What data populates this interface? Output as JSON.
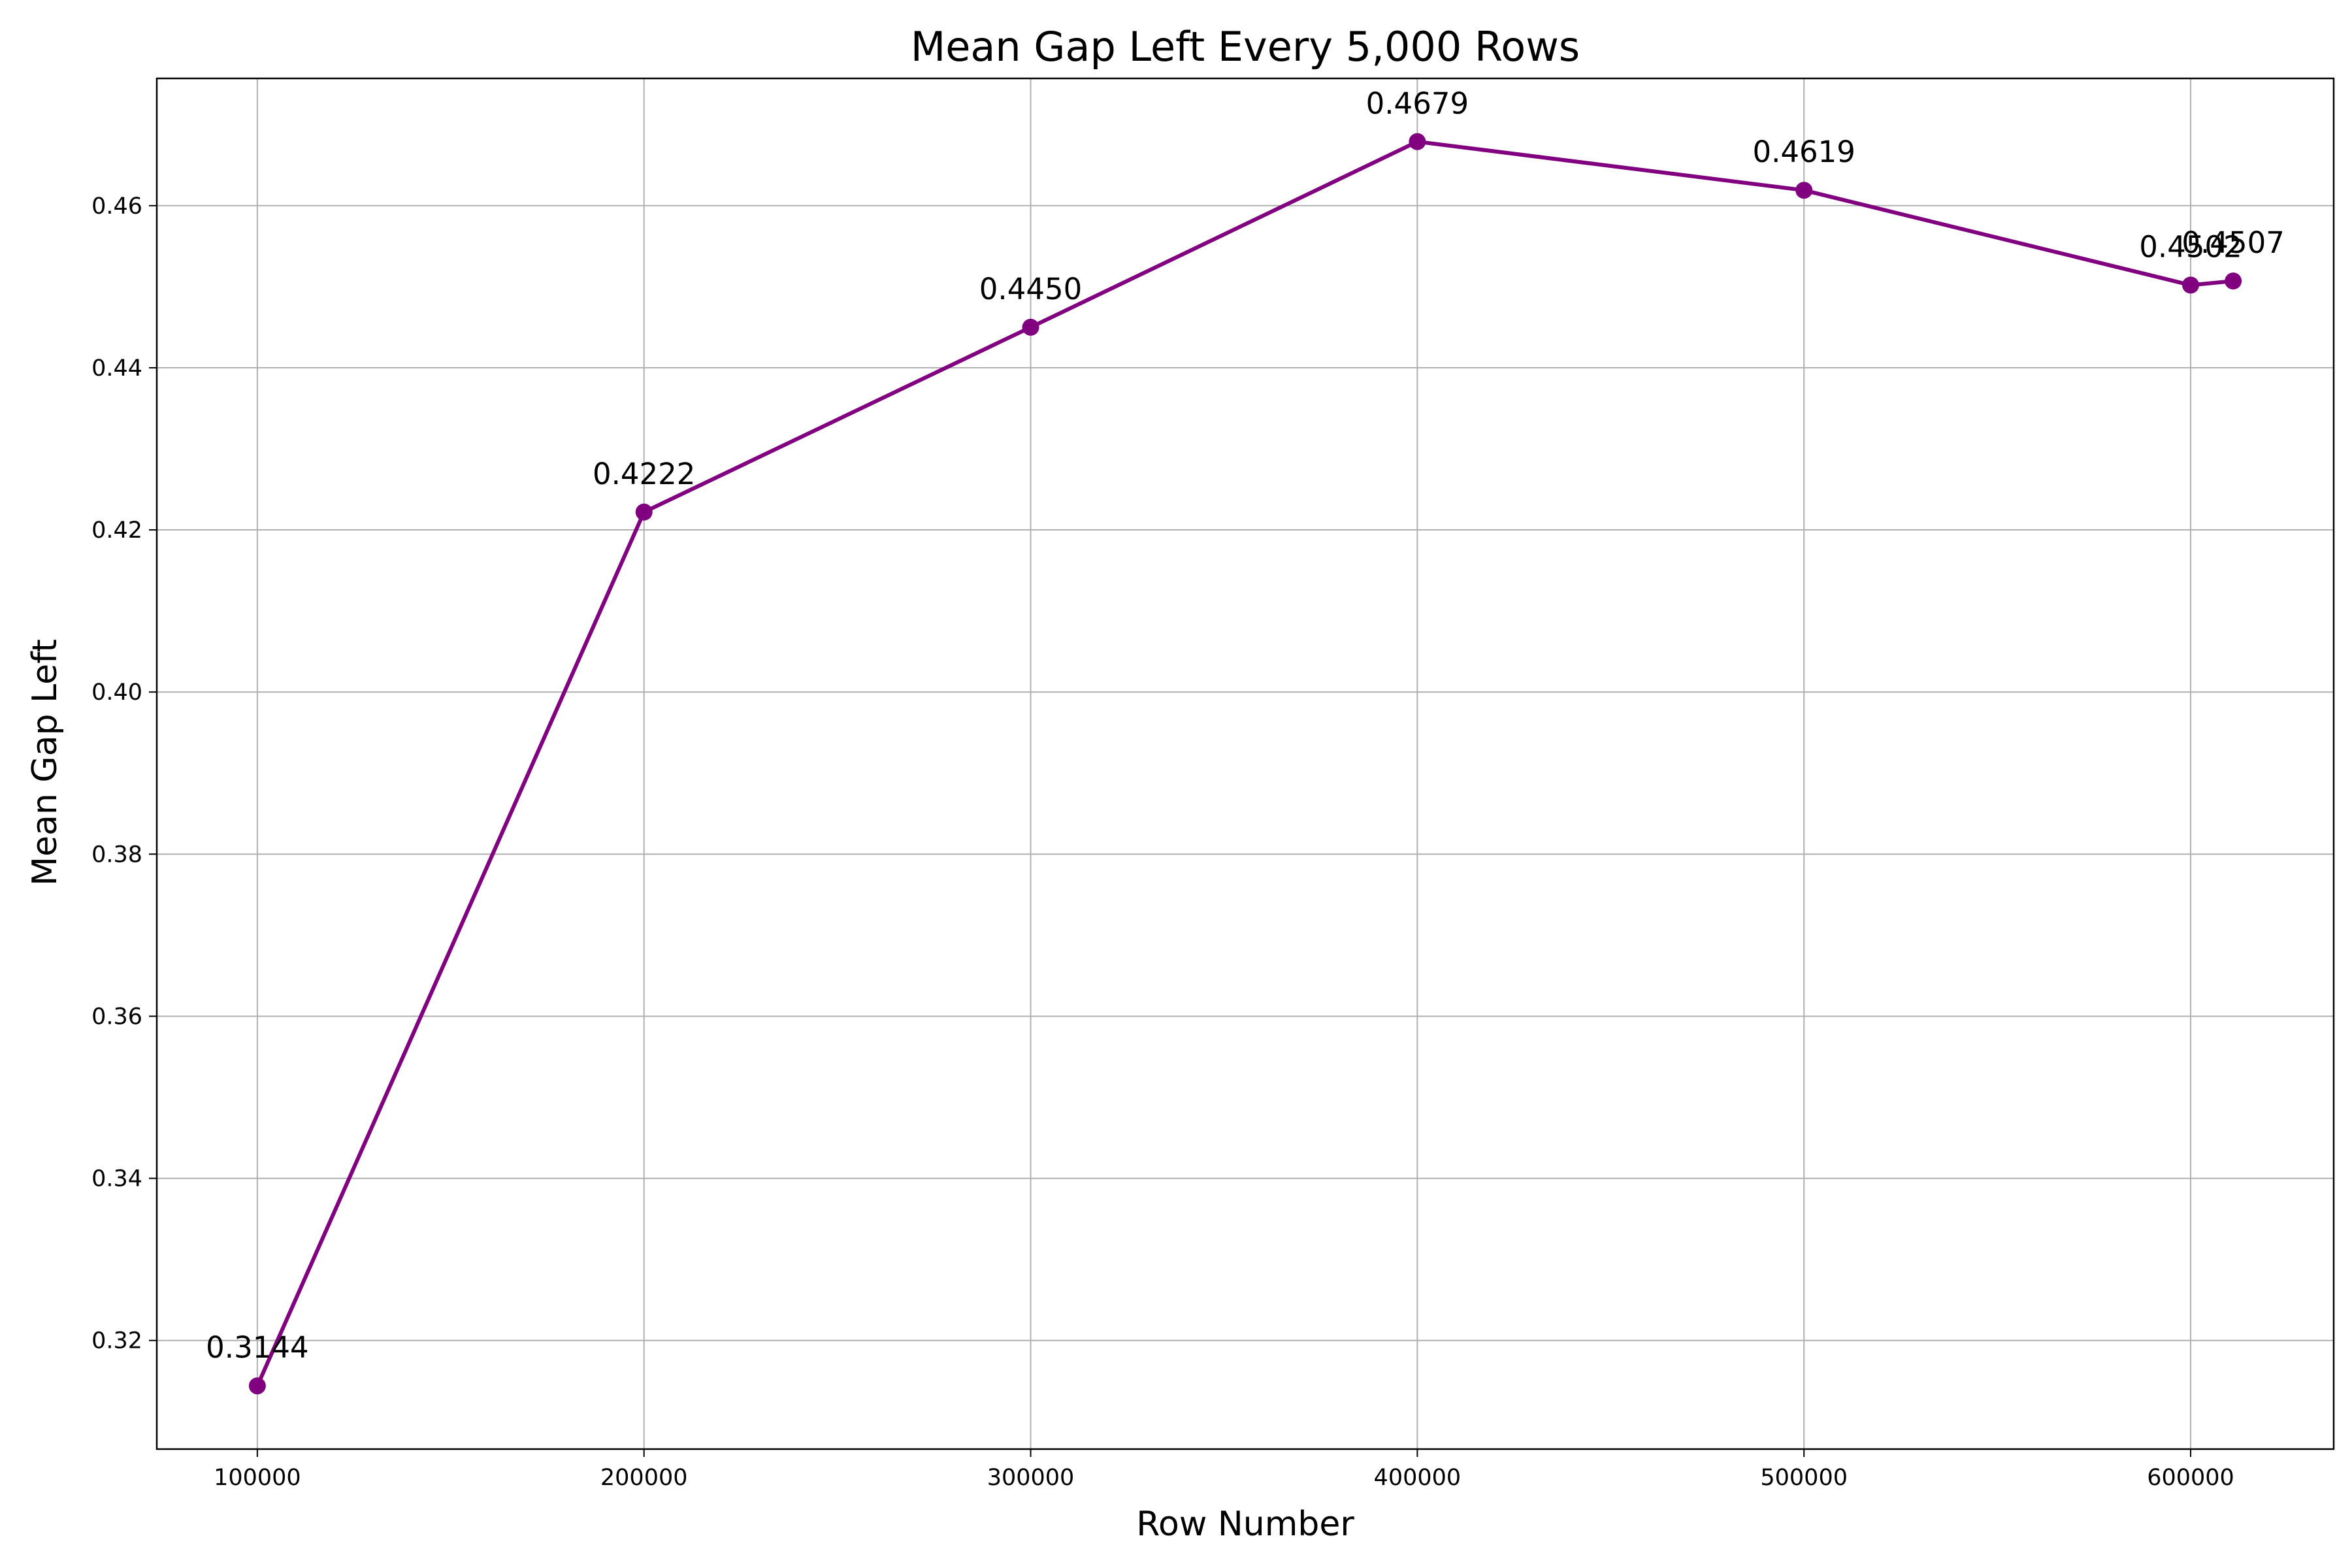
{
  "chart_data": {
    "type": "line",
    "title": "Mean Gap Left Every 5,000 Rows",
    "xlabel": "Row Number",
    "ylabel": "Mean Gap Left",
    "xlim": [
      74000,
      637000
    ],
    "ylim": [
      0.3066,
      0.4757
    ],
    "xticks": [
      100000,
      200000,
      300000,
      400000,
      500000,
      600000
    ],
    "yticks": [
      0.32,
      0.34,
      0.36,
      0.38,
      0.4,
      0.42,
      0.44,
      0.46
    ],
    "ytick_labels": [
      "0.32",
      "0.34",
      "0.36",
      "0.38",
      "0.40",
      "0.42",
      "0.44",
      "0.46"
    ],
    "grid": true,
    "color": "#800080",
    "series": [
      {
        "x": [
          100000,
          200000,
          300000,
          400000,
          500000,
          600000,
          611000
        ],
        "y": [
          0.3144,
          0.4222,
          0.445,
          0.4679,
          0.4619,
          0.4502,
          0.4507
        ],
        "labels": [
          "0.3144",
          "0.4222",
          "0.4450",
          "0.4679",
          "0.4619",
          "0.4502",
          "0.4507"
        ]
      }
    ]
  }
}
